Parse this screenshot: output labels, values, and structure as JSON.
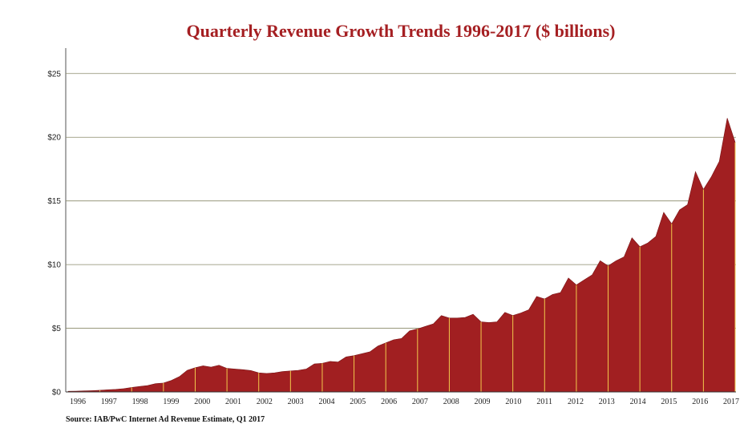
{
  "chart_data": {
    "type": "area",
    "title": "Quarterly Revenue Growth Trends 1996-2017 ($ billions)",
    "source": "Source: IAB/PwC Internet Ad Revenue Estimate, Q1 2017",
    "xlabel": "",
    "ylabel": "",
    "ylim": [
      0,
      27
    ],
    "y_ticks": [
      "$0",
      "$5",
      "$10",
      "$15",
      "$20",
      "$25"
    ],
    "y_tick_values": [
      0,
      5,
      10,
      15,
      20,
      25
    ],
    "year_labels": [
      "1996",
      "1997",
      "1998",
      "1999",
      "2000",
      "2001",
      "2002",
      "2003",
      "2004",
      "2005",
      "2006",
      "2007",
      "2008",
      "2009",
      "2010",
      "2011",
      "2012",
      "2013",
      "2014",
      "2015",
      "2016",
      "2017"
    ],
    "grid": true,
    "fill_color": "#a11f21",
    "separator_color": "#f2c94c",
    "title_color": "#a51f22",
    "series": [
      {
        "name": "Quarterly Revenue",
        "values": [
          0.05,
          0.06,
          0.08,
          0.1,
          0.13,
          0.17,
          0.2,
          0.26,
          0.35,
          0.43,
          0.5,
          0.65,
          0.7,
          0.9,
          1.2,
          1.7,
          1.9,
          2.05,
          1.95,
          2.1,
          1.85,
          1.8,
          1.75,
          1.68,
          1.5,
          1.45,
          1.5,
          1.6,
          1.65,
          1.7,
          1.8,
          2.2,
          2.25,
          2.4,
          2.35,
          2.75,
          2.85,
          3.0,
          3.15,
          3.6,
          3.85,
          4.1,
          4.2,
          4.8,
          4.95,
          5.15,
          5.35,
          6.0,
          5.8,
          5.8,
          5.85,
          6.1,
          5.5,
          5.45,
          5.5,
          6.25,
          6.0,
          6.2,
          6.45,
          7.5,
          7.3,
          7.65,
          7.8,
          8.95,
          8.4,
          8.8,
          9.2,
          10.3,
          9.9,
          10.3,
          10.6,
          12.1,
          11.4,
          11.7,
          12.2,
          14.1,
          13.2,
          14.3,
          14.7,
          17.3,
          15.9,
          16.9,
          18.1,
          21.5,
          19.6
        ]
      }
    ]
  }
}
